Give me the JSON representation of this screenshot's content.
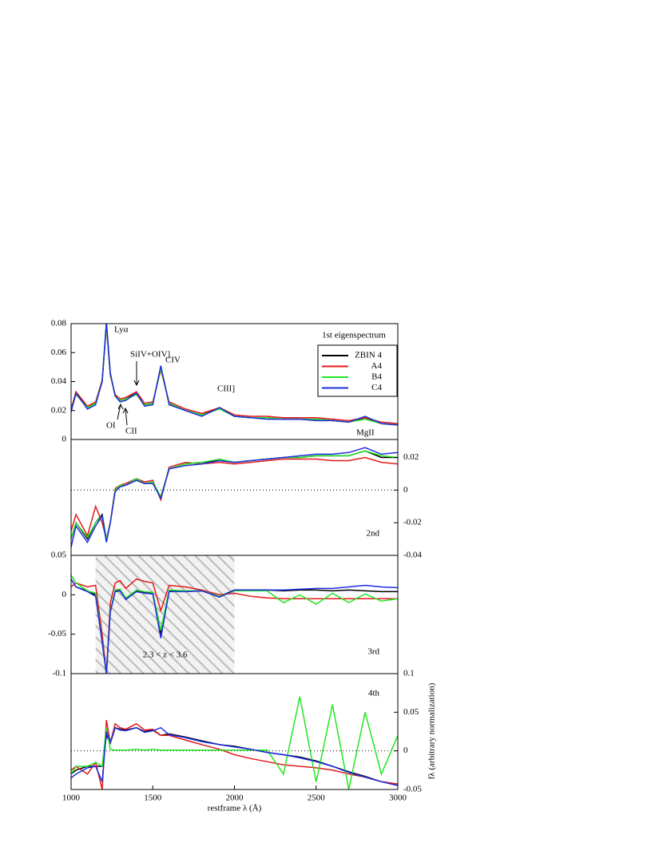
{
  "chart_data": [
    {
      "type": "line",
      "yaxis_side": "left",
      "ylim": [
        0,
        0.08
      ],
      "yticks": [
        0,
        0.02,
        0.04,
        0.06,
        0.08
      ],
      "legend_title": "1st eigenspectrum",
      "legend": "upper right",
      "annotations": [
        "Lyα",
        "SiIV+OIV]",
        "CIV",
        "OI",
        "CII",
        "CIII]",
        "MgII"
      ],
      "x": [
        1000,
        1030,
        1100,
        1150,
        1190,
        1216,
        1240,
        1270,
        1300,
        1335,
        1400,
        1450,
        1500,
        1549,
        1600,
        1700,
        1800,
        1909,
        2000,
        2100,
        2200,
        2300,
        2400,
        2500,
        2600,
        2700,
        2800,
        2900,
        3000
      ],
      "series": [
        {
          "name": "ZBIN 4",
          "color": "#000000",
          "values": [
            0.02,
            0.032,
            0.022,
            0.025,
            0.04,
            0.08,
            0.045,
            0.03,
            0.027,
            0.028,
            0.032,
            0.024,
            0.025,
            0.05,
            0.025,
            0.02,
            0.017,
            0.022,
            0.016,
            0.015,
            0.015,
            0.014,
            0.014,
            0.014,
            0.013,
            0.012,
            0.015,
            0.011,
            0.01
          ]
        },
        {
          "name": "A4",
          "color": "#e41a1c",
          "values": [
            0.021,
            0.033,
            0.023,
            0.026,
            0.041,
            0.078,
            0.044,
            0.031,
            0.028,
            0.029,
            0.033,
            0.025,
            0.026,
            0.048,
            0.026,
            0.021,
            0.018,
            0.022,
            0.017,
            0.016,
            0.016,
            0.015,
            0.015,
            0.015,
            0.014,
            0.013,
            0.015,
            0.012,
            0.011
          ]
        },
        {
          "name": "B4",
          "color": "#22e622",
          "values": [
            0.02,
            0.031,
            0.022,
            0.025,
            0.04,
            0.079,
            0.045,
            0.03,
            0.027,
            0.028,
            0.031,
            0.024,
            0.025,
            0.049,
            0.025,
            0.02,
            0.017,
            0.021,
            0.016,
            0.015,
            0.015,
            0.014,
            0.014,
            0.014,
            0.013,
            0.012,
            0.014,
            0.011,
            0.01
          ]
        },
        {
          "name": "C4",
          "color": "#1f2ee0",
          "values": [
            0.019,
            0.032,
            0.021,
            0.024,
            0.04,
            0.081,
            0.046,
            0.03,
            0.026,
            0.027,
            0.032,
            0.023,
            0.024,
            0.051,
            0.024,
            0.02,
            0.016,
            0.022,
            0.016,
            0.015,
            0.014,
            0.014,
            0.014,
            0.013,
            0.013,
            0.012,
            0.016,
            0.011,
            0.01
          ]
        }
      ]
    },
    {
      "type": "line",
      "yaxis_side": "right",
      "ylim": [
        -0.04,
        0.031
      ],
      "yticks": [
        -0.04,
        -0.02,
        0,
        0.02
      ],
      "zero_line": true,
      "label": "2nd",
      "x": [
        1000,
        1030,
        1100,
        1150,
        1190,
        1216,
        1240,
        1270,
        1300,
        1335,
        1400,
        1450,
        1500,
        1549,
        1600,
        1700,
        1800,
        1909,
        2000,
        2100,
        2200,
        2300,
        2400,
        2500,
        2600,
        2700,
        2800,
        2900,
        3000
      ],
      "series": [
        {
          "color": "#000000",
          "values": [
            -0.03,
            -0.02,
            -0.03,
            -0.02,
            -0.015,
            -0.03,
            -0.02,
            0,
            0.002,
            0.003,
            0.006,
            0.004,
            0.005,
            -0.005,
            0.013,
            0.016,
            0.017,
            0.018,
            0.017,
            0.018,
            0.019,
            0.02,
            0.02,
            0.021,
            0.021,
            0.021,
            0.024,
            0.02,
            0.02
          ]
        },
        {
          "color": "#e41a1c",
          "values": [
            -0.025,
            -0.015,
            -0.028,
            -0.01,
            -0.02,
            -0.03,
            -0.02,
            0.001,
            0.003,
            0.004,
            0.007,
            0.005,
            0.006,
            -0.006,
            0.014,
            0.017,
            0.016,
            0.017,
            0.016,
            0.017,
            0.018,
            0.019,
            0.019,
            0.019,
            0.018,
            0.018,
            0.02,
            0.017,
            0.016
          ]
        },
        {
          "color": "#22e622",
          "values": [
            -0.03,
            -0.02,
            -0.029,
            -0.02,
            -0.016,
            -0.03,
            -0.02,
            0,
            0.003,
            0.003,
            0.007,
            0.004,
            0.005,
            -0.004,
            0.013,
            0.016,
            0.017,
            0.019,
            0.017,
            0.018,
            0.019,
            0.02,
            0.02,
            0.021,
            0.021,
            0.021,
            0.024,
            0.021,
            0.02
          ]
        },
        {
          "color": "#1f2ee0",
          "values": [
            -0.035,
            -0.022,
            -0.032,
            -0.022,
            -0.016,
            -0.032,
            -0.02,
            -0.001,
            0.002,
            0.003,
            0.006,
            0.004,
            0.004,
            -0.005,
            0.013,
            0.015,
            0.016,
            0.018,
            0.017,
            0.018,
            0.019,
            0.02,
            0.021,
            0.022,
            0.022,
            0.023,
            0.026,
            0.022,
            0.023
          ]
        }
      ]
    },
    {
      "type": "line",
      "yaxis_side": "left",
      "ylim": [
        -0.1,
        0.05
      ],
      "yticks": [
        -0.1,
        -0.05,
        0,
        0.05
      ],
      "label": "3rd",
      "shade": {
        "range": [
          1150,
          2000
        ],
        "label": "2.3 < z < 3.6"
      },
      "x": [
        1000,
        1030,
        1100,
        1150,
        1190,
        1216,
        1240,
        1270,
        1300,
        1335,
        1400,
        1450,
        1500,
        1549,
        1600,
        1700,
        1800,
        1909,
        2000,
        2100,
        2200,
        2300,
        2400,
        2500,
        2600,
        2700,
        2800,
        2900,
        3000
      ],
      "series": [
        {
          "color": "#000000",
          "values": [
            0.02,
            0.01,
            0.005,
            0,
            -0.06,
            -0.1,
            -0.02,
            0.005,
            0.006,
            -0.005,
            0.005,
            0.003,
            0.002,
            -0.05,
            0.005,
            0.004,
            0.005,
            -0.002,
            0.006,
            0.006,
            0.006,
            0.005,
            0.006,
            0.006,
            0.005,
            0.006,
            0.005,
            0.004,
            0.004
          ]
        },
        {
          "color": "#e41a1c",
          "values": [
            0.01,
            0.015,
            0.01,
            0.012,
            -0.05,
            -0.1,
            -0.01,
            0.015,
            0.018,
            0.008,
            0.02,
            0.017,
            0.015,
            -0.02,
            0.012,
            0.01,
            0.006,
            0,
            0.002,
            -0.002,
            -0.004,
            -0.005,
            -0.005,
            -0.005,
            -0.005,
            -0.005,
            -0.005,
            -0.005,
            -0.005
          ]
        },
        {
          "color": "#22e622",
          "values": [
            0.025,
            0.015,
            0.005,
            0.002,
            -0.06,
            -0.1,
            -0.02,
            0.006,
            0.007,
            -0.004,
            0.006,
            0.004,
            0.003,
            -0.045,
            0.006,
            0.005,
            0.005,
            -0.002,
            0.005,
            0.005,
            0.005,
            -0.01,
            0,
            -0.012,
            0.002,
            -0.01,
            0.001,
            -0.008,
            -0.005
          ]
        },
        {
          "color": "#1f2ee0",
          "values": [
            0.02,
            0.01,
            0.004,
            -0.002,
            -0.06,
            -0.1,
            -0.022,
            0.004,
            0.005,
            -0.006,
            0.004,
            0.002,
            0.001,
            -0.055,
            0.004,
            0.004,
            0.005,
            -0.003,
            0.006,
            0.006,
            0.006,
            0.006,
            0.007,
            0.008,
            0.008,
            0.01,
            0.012,
            0.01,
            0.009
          ]
        }
      ]
    },
    {
      "type": "line",
      "yaxis_side": "right",
      "ylim": [
        -0.05,
        0.1
      ],
      "yticks": [
        -0.05,
        0,
        0.05,
        0.1
      ],
      "zero_line": true,
      "label": "4th",
      "xlim": [
        1000,
        3000
      ],
      "xticks": [
        1000,
        1500,
        2000,
        2500,
        3000
      ],
      "xlabel": "restframe λ (Å)",
      "ylabel": "fλ (arbitrary normalization)",
      "x": [
        1000,
        1030,
        1100,
        1150,
        1190,
        1216,
        1240,
        1270,
        1300,
        1335,
        1400,
        1450,
        1500,
        1549,
        1600,
        1700,
        1800,
        1909,
        2000,
        2100,
        2200,
        2300,
        2400,
        2500,
        2600,
        2700,
        2800,
        2900,
        3000
      ],
      "series": [
        {
          "color": "#000000",
          "values": [
            -0.03,
            -0.025,
            -0.02,
            -0.02,
            -0.02,
            0.02,
            0.01,
            0.03,
            0.028,
            0.027,
            0.03,
            0.025,
            0.027,
            0.02,
            0.022,
            0.018,
            0.013,
            0.008,
            0.006,
            0.002,
            -0.002,
            -0.005,
            -0.008,
            -0.013,
            -0.02,
            -0.027,
            -0.033,
            -0.04,
            -0.043
          ]
        },
        {
          "color": "#e41a1c",
          "values": [
            -0.025,
            -0.02,
            -0.03,
            -0.015,
            -0.05,
            0.04,
            0.01,
            0.035,
            0.03,
            0.028,
            0.035,
            0.027,
            0.028,
            0.02,
            0.02,
            0.014,
            0.008,
            0.002,
            -0.005,
            -0.01,
            -0.014,
            -0.018,
            -0.02,
            -0.022,
            -0.025,
            -0.03,
            -0.034,
            -0.04,
            -0.043
          ]
        },
        {
          "color": "#22e622",
          "values": [
            -0.03,
            -0.02,
            -0.02,
            -0.015,
            -0.02,
            0.03,
            0.002,
            0.001,
            0.001,
            0.001,
            0.002,
            0.001,
            0.002,
            0.001,
            0.001,
            0.001,
            0.001,
            0.001,
            0.001,
            0.001,
            0.001,
            -0.03,
            0.07,
            -0.04,
            0.06,
            -0.05,
            0.05,
            -0.03,
            0.02
          ]
        },
        {
          "color": "#1f2ee0",
          "values": [
            -0.035,
            -0.03,
            -0.022,
            -0.02,
            -0.04,
            0.025,
            0.012,
            0.03,
            0.027,
            0.026,
            0.03,
            0.024,
            0.026,
            0.03,
            0.021,
            0.017,
            0.012,
            0.008,
            0.005,
            0.002,
            -0.002,
            -0.005,
            -0.009,
            -0.014,
            -0.02,
            -0.028,
            -0.034,
            -0.04,
            -0.045
          ]
        }
      ]
    }
  ]
}
